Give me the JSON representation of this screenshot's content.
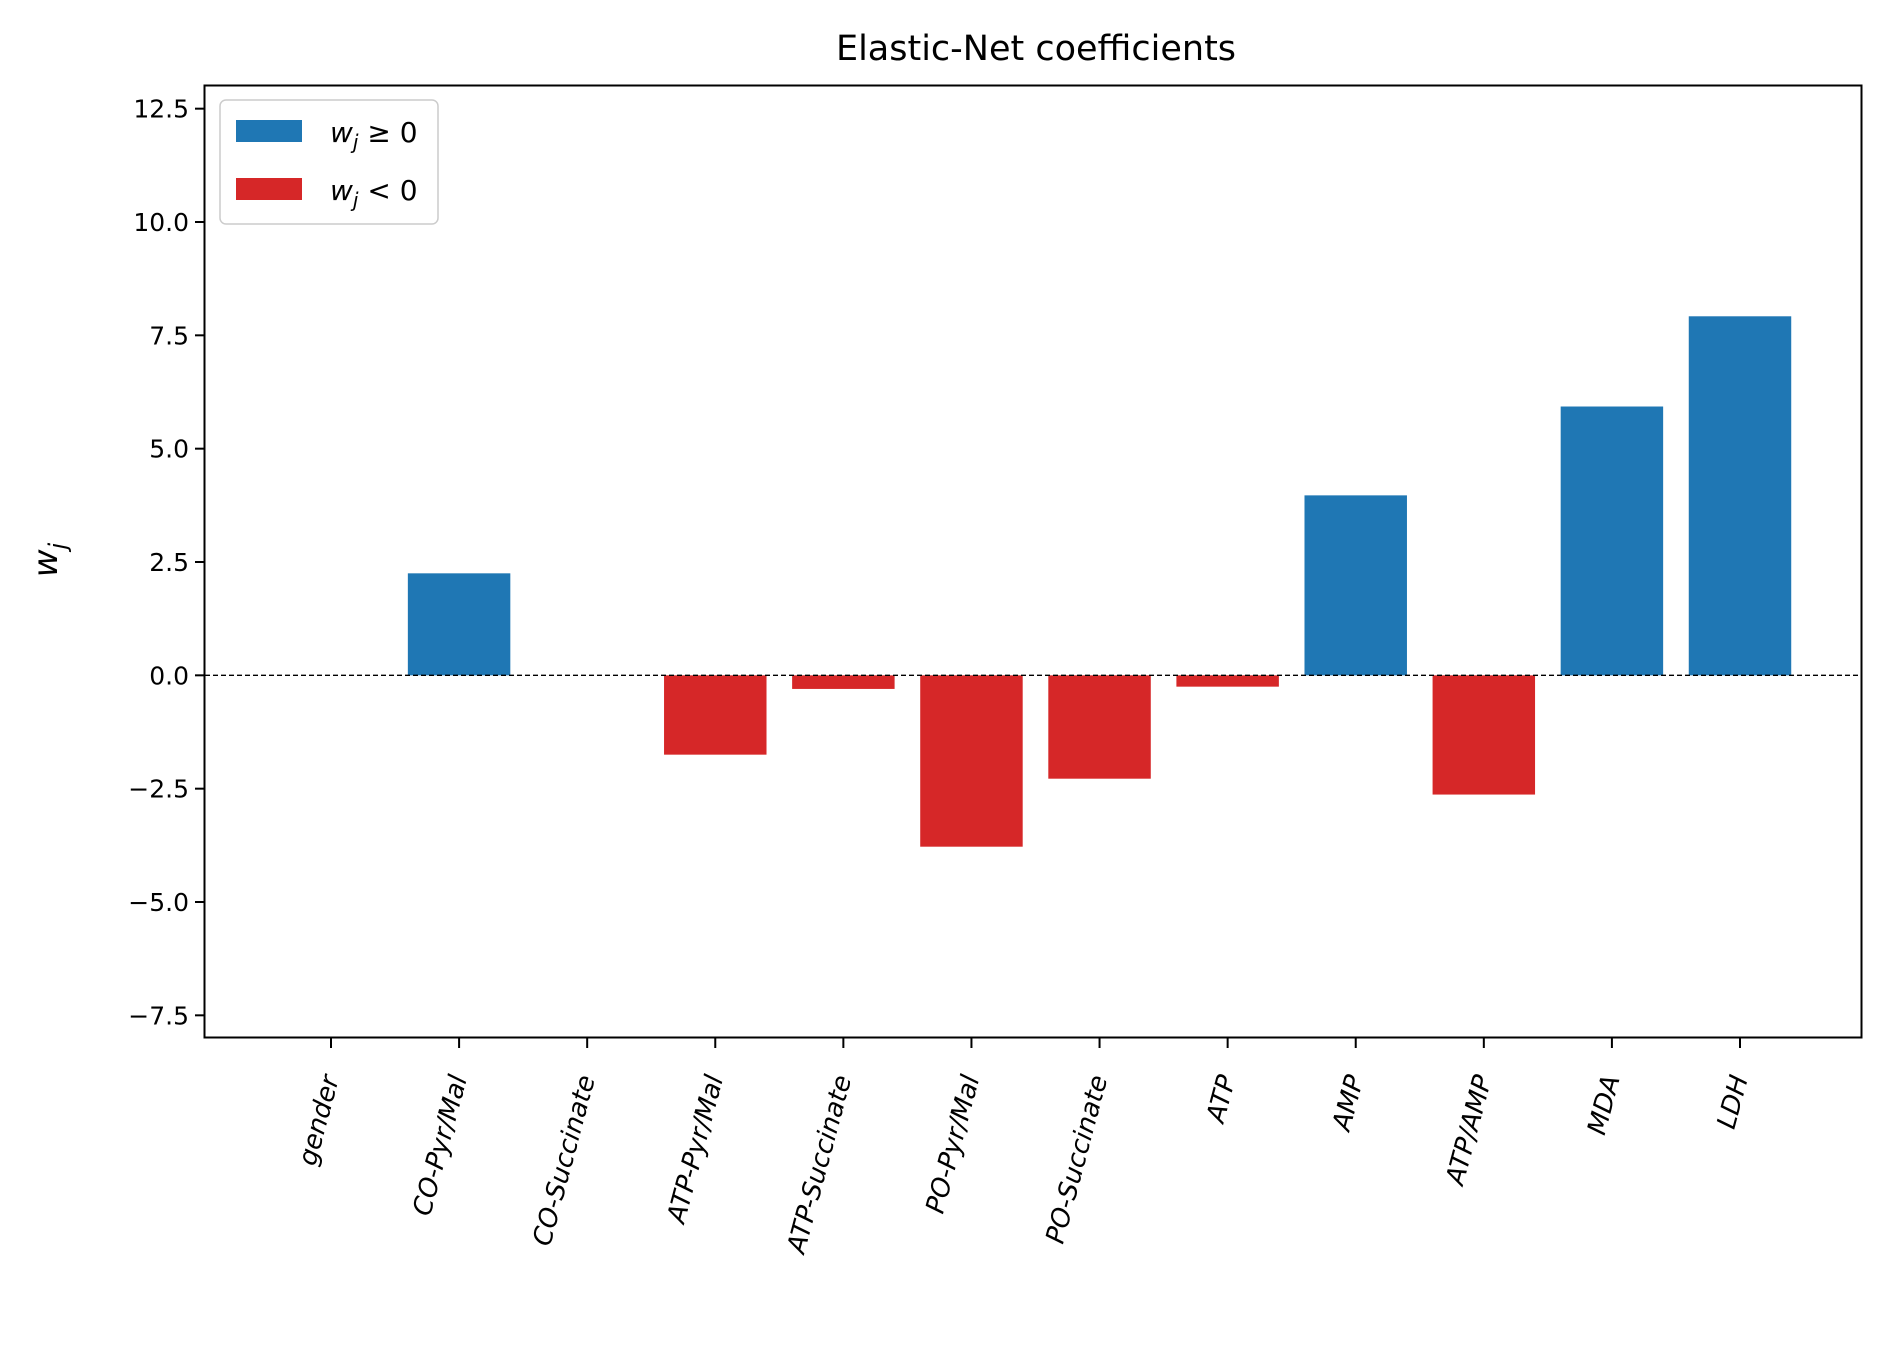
{
  "chart_data": {
    "type": "bar",
    "title": "Elastic-Net coefficients",
    "xlabel": "",
    "ylabel": "w_j",
    "ylabel_display": "w",
    "ylabel_sub": "j",
    "categories": [
      "gender",
      "CO-Pyr/Mal",
      "CO-Succinate",
      "ATP-Pyr/Mal",
      "ATP-Succinate",
      "PO-Pyr/Mal",
      "PO-Succinate",
      "ATP",
      "AMP",
      "ATP/AMP",
      "MDA",
      "LDH"
    ],
    "values": [
      0.0,
      2.25,
      0.0,
      -1.75,
      -0.3,
      -3.78,
      -2.28,
      -0.25,
      3.97,
      -2.63,
      5.93,
      7.92
    ],
    "ylim": [
      -8.0,
      13.0
    ],
    "yticks": [
      -7.5,
      -5.0,
      -2.5,
      0.0,
      2.5,
      5.0,
      7.5,
      10.0,
      12.5
    ],
    "ytick_labels": [
      "−7.5",
      "−5.0",
      "−2.5",
      "0.0",
      "2.5",
      "5.0",
      "7.5",
      "10.0",
      "12.5"
    ],
    "zero_line": "dashed",
    "grid": false,
    "legend_position": "top-left",
    "legend": [
      {
        "symbol": "w",
        "sub": "j",
        "relation": " ≥ 0",
        "color": "#1f77b4"
      },
      {
        "symbol": "w",
        "sub": "j",
        "relation": " < 0",
        "color": "#d62728"
      }
    ],
    "colors": {
      "positive": "#1f77b4",
      "negative": "#d62728"
    }
  }
}
